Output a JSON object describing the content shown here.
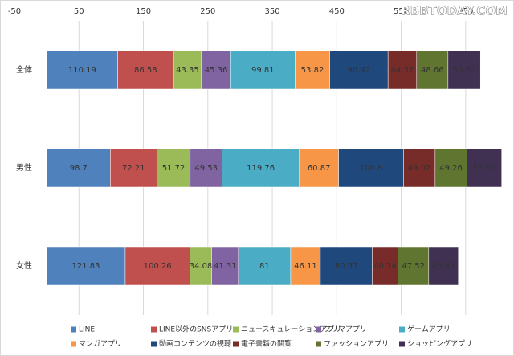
{
  "watermark": "RBBTODAY.COM",
  "chart_data": {
    "type": "stacked-bar-horizontal",
    "categories": [
      "全体",
      "男性",
      "女性"
    ],
    "series": [
      {
        "name": "LINE",
        "color": "#4f81bd",
        "values": [
          110.19,
          98.7,
          121.83
        ]
      },
      {
        "name": "LINE以外のSNSアプリ",
        "color": "#c0504d",
        "values": [
          86.58,
          72.21,
          100.26
        ]
      },
      {
        "name": "ニュースキュレーションアプリ",
        "color": "#9bbb59",
        "values": [
          43.35,
          51.72,
          34.08
        ]
      },
      {
        "name": "フリマアプリ",
        "color": "#8064a2",
        "values": [
          45.36,
          49.53,
          41.31
        ]
      },
      {
        "name": "ゲームアプリ",
        "color": "#4bacc6",
        "values": [
          99.81,
          119.76,
          81
        ]
      },
      {
        "name": "マンガアプリ",
        "color": "#f79646",
        "values": [
          53.82,
          60.87,
          46.11
        ]
      },
      {
        "name": "動画コンテンツの視聴",
        "color": "#1f497d",
        "values": [
          90.42,
          100.8,
          80.37
        ]
      },
      {
        "name": "電子書籍の閲覧",
        "color": "#772c2a",
        "values": [
          44.37,
          49.02,
          40.14
        ]
      },
      {
        "name": "ファッションアプリ",
        "color": "#5f7530",
        "values": [
          48.66,
          49.26,
          47.52
        ]
      },
      {
        "name": "ショッピングアプリ",
        "color": "#403152",
        "values": [
          50.31,
          53.91,
          45.93
        ]
      }
    ],
    "xlim": [
      -50,
      700
    ],
    "xticks": [
      -50,
      50,
      150,
      250,
      350,
      450,
      550,
      650
    ],
    "grid": true
  }
}
